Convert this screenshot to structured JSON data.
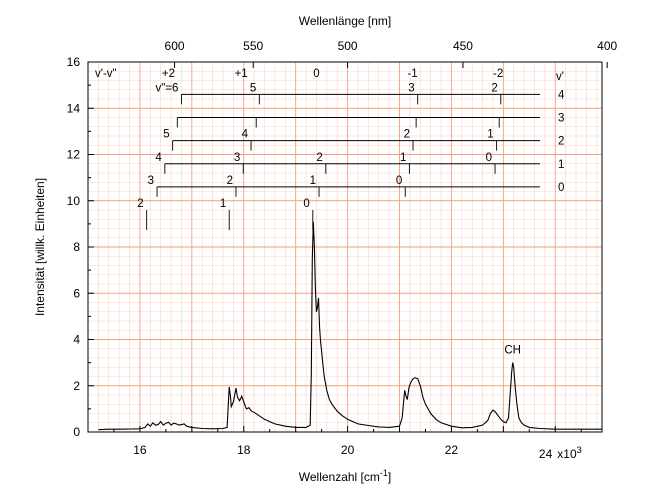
{
  "chart_data": {
    "type": "line",
    "xlabel": "Wellenzahl [cm",
    "xlabel_sup": "-1",
    "xlabel_end": "]",
    "ylabel": "Intensität [willk. Einheiten]",
    "top_axis_title": "Wellenlänge [nm]",
    "xlim": [
      15000,
      24900
    ],
    "ylim": [
      0,
      16
    ],
    "grid": true,
    "x_ticks": [
      {
        "value": 16000,
        "label": "16"
      },
      {
        "value": 18000,
        "label": "18"
      },
      {
        "value": 20000,
        "label": "20"
      },
      {
        "value": 22000,
        "label": "22"
      },
      {
        "value": 24000,
        "label": "24"
      }
    ],
    "x_multiplier": "x10",
    "x_multiplier_exp": "3",
    "y_ticks": [
      {
        "value": 0,
        "label": "0"
      },
      {
        "value": 2,
        "label": "2"
      },
      {
        "value": 4,
        "label": "4"
      },
      {
        "value": 6,
        "label": "6"
      },
      {
        "value": 8,
        "label": "8"
      },
      {
        "value": 10,
        "label": "10"
      },
      {
        "value": 12,
        "label": "12"
      },
      {
        "value": 14,
        "label": "14"
      },
      {
        "value": 16,
        "label": "16"
      }
    ],
    "top_ticks": [
      {
        "wavelength_nm": 600,
        "label": "600"
      },
      {
        "wavelength_nm": 550,
        "label": "550"
      },
      {
        "wavelength_nm": 500,
        "label": "500"
      },
      {
        "wavelength_nm": 450,
        "label": "450"
      },
      {
        "wavelength_nm": 400,
        "label": "400"
      }
    ],
    "delta_v_header": "v'-v\"",
    "delta_v_labels": [
      {
        "x": 16550,
        "label": "+2"
      },
      {
        "x": 17950,
        "label": "+1"
      },
      {
        "x": 19400,
        "label": "0"
      },
      {
        "x": 21250,
        "label": "-1"
      },
      {
        "x": 22900,
        "label": "-2"
      }
    ],
    "v_prime_header": "v'",
    "progressions": [
      {
        "v_upper": "4",
        "y_level": 14.6,
        "bands": [
          {
            "x": 16800,
            "label": "v\"=6"
          },
          {
            "x": 18300,
            "label": "5"
          },
          {
            "x": 21350,
            "label": "3"
          },
          {
            "x": 22950,
            "label": "2"
          }
        ]
      },
      {
        "v_upper": "3",
        "y_level": 13.6,
        "bands": [
          {
            "x": 16720,
            "label": ""
          },
          {
            "x": 18240,
            "label": ""
          },
          {
            "x": 21320,
            "label": ""
          },
          {
            "x": 22920,
            "label": ""
          }
        ]
      },
      {
        "v_upper": "2",
        "y_level": 12.6,
        "bands": [
          {
            "x": 16630,
            "label": "5"
          },
          {
            "x": 18140,
            "label": "4"
          },
          {
            "x": 21260,
            "label": "2"
          },
          {
            "x": 22870,
            "label": "1"
          }
        ]
      },
      {
        "v_upper": "1",
        "y_level": 11.6,
        "bands": [
          {
            "x": 16480,
            "label": "4"
          },
          {
            "x": 17990,
            "label": "3"
          },
          {
            "x": 19580,
            "label": "2"
          },
          {
            "x": 21190,
            "label": "1"
          },
          {
            "x": 22840,
            "label": "0"
          }
        ]
      },
      {
        "v_upper": "0",
        "y_level": 10.6,
        "bands": [
          {
            "x": 16330,
            "label": "3"
          },
          {
            "x": 17850,
            "label": "2"
          },
          {
            "x": 19450,
            "label": "1"
          },
          {
            "x": 21110,
            "label": "0"
          }
        ]
      },
      {
        "v_upper": "",
        "y_level": 9.6,
        "bands": [
          {
            "x": 16130,
            "label": "2"
          },
          {
            "x": 17720,
            "label": "1"
          },
          {
            "x": 19330,
            "label": "0"
          }
        ]
      }
    ],
    "annotations": [
      {
        "x": 23180,
        "y": 3.05,
        "label": "CH"
      }
    ],
    "series": [
      {
        "x": [
          15200,
          15400,
          15600,
          15800,
          16000,
          16100,
          16150,
          16200,
          16250,
          16300,
          16350,
          16400,
          16450,
          16500,
          16550,
          16600,
          16650,
          16700,
          16750,
          16800,
          16850,
          16900,
          17000,
          17200,
          17400,
          17600,
          17680,
          17720,
          17740,
          17760,
          17800,
          17850,
          17880,
          17920,
          17960,
          18000,
          18050,
          18100,
          18150,
          18200,
          18300,
          18400,
          18500,
          18600,
          18800,
          19000,
          19200,
          19280,
          19300,
          19320,
          19340,
          19360,
          19380,
          19400,
          19420,
          19440,
          19460,
          19480,
          19500,
          19520,
          19550,
          19600,
          19650,
          19700,
          19800,
          19900,
          20000,
          20200,
          20400,
          20600,
          20800,
          21000,
          21050,
          21100,
          21120,
          21150,
          21180,
          21200,
          21230,
          21260,
          21300,
          21350,
          21400,
          21450,
          21500,
          21600,
          21700,
          21800,
          22000,
          22200,
          22400,
          22600,
          22700,
          22750,
          22800,
          22850,
          22900,
          22950,
          23000,
          23050,
          23100,
          23130,
          23160,
          23180,
          23200,
          23230,
          23260,
          23300,
          23350,
          23400,
          23500,
          23700,
          24000,
          24400,
          24900
        ],
        "y": [
          0.1,
          0.12,
          0.12,
          0.13,
          0.14,
          0.2,
          0.35,
          0.25,
          0.4,
          0.3,
          0.32,
          0.45,
          0.3,
          0.38,
          0.42,
          0.3,
          0.38,
          0.35,
          0.3,
          0.32,
          0.35,
          0.25,
          0.2,
          0.15,
          0.14,
          0.15,
          0.2,
          1.95,
          1.6,
          1.1,
          1.3,
          1.9,
          1.5,
          1.35,
          1.55,
          1.3,
          1.0,
          1.05,
          0.9,
          0.85,
          0.7,
          0.55,
          0.45,
          0.35,
          0.25,
          0.2,
          0.2,
          0.3,
          2.5,
          7.5,
          9.1,
          8.0,
          6.2,
          5.2,
          5.4,
          5.8,
          4.5,
          3.9,
          3.5,
          3.0,
          2.4,
          1.8,
          1.4,
          1.2,
          0.9,
          0.7,
          0.55,
          0.35,
          0.28,
          0.22,
          0.2,
          0.25,
          0.6,
          1.8,
          1.6,
          1.4,
          1.9,
          2.05,
          2.2,
          2.3,
          2.35,
          2.3,
          2.0,
          1.5,
          1.2,
          0.8,
          0.55,
          0.4,
          0.25,
          0.18,
          0.2,
          0.3,
          0.5,
          0.8,
          0.95,
          0.85,
          0.7,
          0.55,
          0.45,
          0.4,
          0.6,
          1.6,
          2.6,
          3.0,
          2.8,
          1.9,
          1.2,
          0.6,
          0.4,
          0.3,
          0.2,
          0.15,
          0.12,
          0.12,
          0.12
        ]
      }
    ],
    "colors": {
      "grid_major": "#f2a27e",
      "grid_minor": "#fbd4bf",
      "line": "#000000",
      "frame": "#000000"
    }
  }
}
